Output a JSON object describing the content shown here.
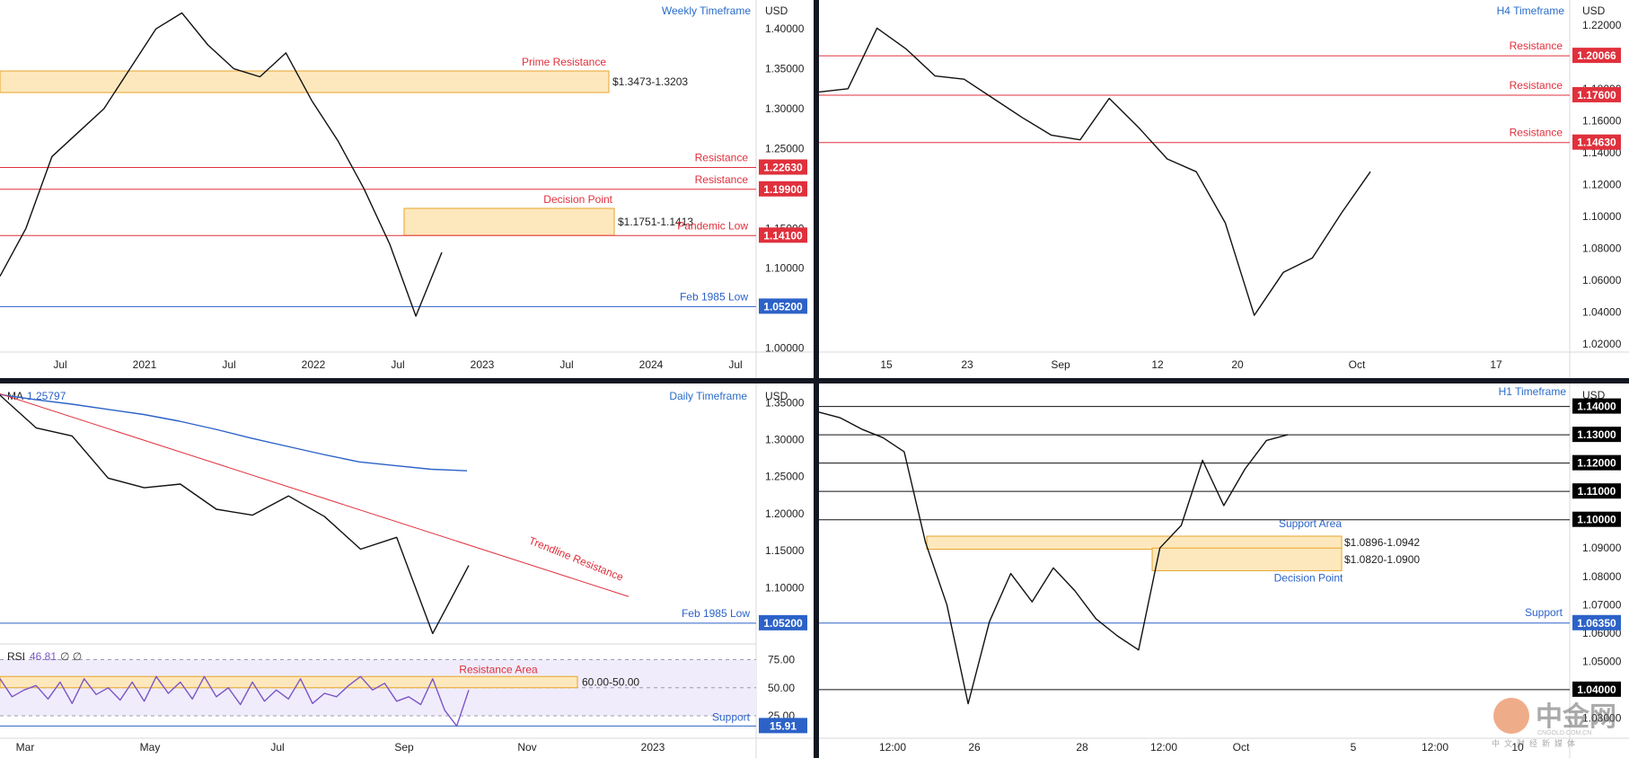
{
  "colors": {
    "resistance": "#e0303c",
    "support": "#2c62c8",
    "zone_fill": "#fde8bd",
    "zone_stroke": "#e9a42a",
    "ma": "#2c62c8",
    "rsi": "#7b55c5",
    "trend": "#e0303c",
    "black": "#111111"
  },
  "currency": "USD",
  "chart_data": [
    {
      "panel": "weekly",
      "type": "line",
      "title": "Weekly Timeframe",
      "ylim": [
        0.995,
        1.425
      ],
      "y_ticks": [
        "1.40000",
        "1.35000",
        "1.30000",
        "1.25000",
        "1.20000",
        "1.15000",
        "1.10000",
        "1.05000",
        "1.00000"
      ],
      "y_tick_values": [
        1.4,
        1.35,
        1.3,
        1.25,
        1.2,
        1.15,
        1.1,
        1.05,
        1.0
      ],
      "x_ticks": [
        "Jul",
        "2021",
        "Jul",
        "2022",
        "Jul",
        "2023",
        "Jul",
        "2024",
        "Jul"
      ],
      "x": [
        "2020-03",
        "2020-05",
        "2020-07",
        "2020-09",
        "2020-12",
        "2021-02",
        "2021-05",
        "2021-07",
        "2021-09",
        "2021-11",
        "2022-01",
        "2022-03",
        "2022-05",
        "2022-07",
        "2022-08",
        "2022-09",
        "2022-09-25",
        "2022-10"
      ],
      "series": [
        {
          "values": [
            1.09,
            1.15,
            1.24,
            1.27,
            1.3,
            1.35,
            1.4,
            1.42,
            1.38,
            1.35,
            1.34,
            1.37,
            1.31,
            1.26,
            1.2,
            1.13,
            1.04,
            1.12
          ]
        }
      ],
      "levels": [
        {
          "label": "Resistance",
          "value": 1.2263,
          "tag": "1.22630",
          "kind": "resistance"
        },
        {
          "label": "Resistance",
          "value": 1.199,
          "tag": "1.19900",
          "kind": "resistance"
        },
        {
          "label": "Pandemic Low",
          "value": 1.141,
          "tag": "1.14100",
          "kind": "resistance"
        },
        {
          "label": "Feb 1985 Low",
          "value": 1.052,
          "tag": "1.05200",
          "kind": "support"
        }
      ],
      "zones": [
        {
          "label": "Prime Resistance",
          "range_text": "$1.3473-1.3203",
          "high": 1.3473,
          "low": 1.3203
        },
        {
          "label": "Decision Point",
          "range_text": "$1.1751-1.1413",
          "high": 1.1751,
          "low": 1.1413
        }
      ]
    },
    {
      "panel": "h4",
      "type": "line",
      "title": "H4 Timeframe",
      "ylim": [
        1.015,
        1.23
      ],
      "y_ticks": [
        "1.22000",
        "1.20000",
        "1.18000",
        "1.16000",
        "1.14000",
        "1.12000",
        "1.10000",
        "1.08000",
        "1.06000",
        "1.04000",
        "1.02000"
      ],
      "y_tick_values": [
        1.22,
        1.2,
        1.18,
        1.16,
        1.14,
        1.12,
        1.1,
        1.08,
        1.06,
        1.04,
        1.02
      ],
      "x_ticks": [
        "15",
        "23",
        "Sep",
        "12",
        "20",
        "Oct",
        "17"
      ],
      "x": [
        "Aug 10",
        "Aug 12",
        "Aug 15",
        "Aug 20",
        "Aug 23",
        "Aug 26",
        "Aug 29",
        "Sep 2",
        "Sep 6",
        "Sep 9",
        "Sep 13",
        "Sep 16",
        "Sep 20",
        "Sep 23",
        "Sep 25",
        "Sep 26",
        "Sep 28",
        "Sep 30",
        "Oct 2",
        "Oct 4"
      ],
      "series": [
        {
          "values": [
            1.178,
            1.18,
            1.218,
            1.205,
            1.188,
            1.186,
            1.174,
            1.162,
            1.151,
            1.148,
            1.174,
            1.156,
            1.136,
            1.128,
            1.096,
            1.038,
            1.065,
            1.074,
            1.102,
            1.128
          ]
        }
      ],
      "levels": [
        {
          "label": "Resistance",
          "value": 1.20066,
          "tag": "1.20066",
          "kind": "resistance"
        },
        {
          "label": "Resistance",
          "value": 1.176,
          "tag": "1.17600",
          "kind": "resistance"
        },
        {
          "label": "Resistance",
          "value": 1.1463,
          "tag": "1.14630",
          "kind": "resistance"
        }
      ],
      "zones": []
    },
    {
      "panel": "daily",
      "type": "line",
      "title": "Daily Timeframe",
      "ylim": [
        1.03,
        1.365
      ],
      "y_ticks": [
        "1.35000",
        "1.30000",
        "1.25000",
        "1.20000",
        "1.15000",
        "1.10000"
      ],
      "y_tick_values": [
        1.35,
        1.3,
        1.25,
        1.2,
        1.15,
        1.1
      ],
      "x_ticks": [
        "Mar",
        "May",
        "Jul",
        "Sep",
        "Nov",
        "2023"
      ],
      "indicator": {
        "name": "MA",
        "value": "1.25797"
      },
      "x": [
        "2022-02-22",
        "2022-03-15",
        "2022-04-05",
        "2022-04-25",
        "2022-05-15",
        "2022-06-05",
        "2022-06-25",
        "2022-07-15",
        "2022-08-01",
        "2022-08-20",
        "2022-09-05",
        "2022-09-15",
        "2022-09-26",
        "2022-10-04"
      ],
      "series": [
        {
          "values": [
            1.36,
            1.316,
            1.305,
            1.248,
            1.235,
            1.24,
            1.206,
            1.198,
            1.224,
            1.196,
            1.152,
            1.168,
            1.038,
            1.13
          ]
        },
        {
          "name": "MA",
          "values": [
            1.361,
            1.354,
            1.348,
            1.341,
            1.334,
            1.325,
            1.314,
            1.302,
            1.291,
            1.28,
            1.27,
            1.265,
            1.26,
            1.258
          ]
        }
      ],
      "trendline": {
        "label": "Trendline Resistance",
        "start": {
          "x": "2022-02-22",
          "y": 1.362
        },
        "end": {
          "x": "2022-11-30",
          "y": 1.088
        }
      },
      "levels": [
        {
          "label": "Feb 1985 Low",
          "value": 1.052,
          "tag": "1.05200",
          "kind": "support"
        }
      ],
      "rsi": {
        "label": "RSI",
        "value": "46.81",
        "extra": "∅ ∅",
        "ylim": [
          5,
          85
        ],
        "ticks": [
          "75.00",
          "50.00",
          "25.00"
        ],
        "tick_values": [
          75,
          50,
          25
        ],
        "zone": {
          "label": "Resistance Area",
          "range_text": "60.00-50.00",
          "high": 60,
          "low": 50
        },
        "support": {
          "label": "Support",
          "value": 15.91,
          "tag": "15.91"
        },
        "values": [
          58,
          42,
          48,
          52,
          40,
          55,
          36,
          58,
          44,
          50,
          39,
          55,
          38,
          60,
          45,
          55,
          40,
          60,
          42,
          50,
          35,
          55,
          38,
          48,
          40,
          58,
          36,
          45,
          42,
          52,
          60,
          48,
          54,
          38,
          42,
          35,
          58,
          30,
          15.9,
          48
        ]
      }
    },
    {
      "panel": "h1",
      "type": "line",
      "title": "H1 Timeframe",
      "ylim": [
        1.026,
        1.144
      ],
      "y_ticks": [
        "1.09000",
        "1.08000",
        "1.07000",
        "1.06000",
        "1.05000",
        "1.03000"
      ],
      "y_tick_values": [
        1.09,
        1.08,
        1.07,
        1.06,
        1.05,
        1.03
      ],
      "x_ticks": [
        "12:00",
        "26",
        "28",
        "12:00",
        "Oct",
        "5",
        "12:00",
        "10"
      ],
      "x": [
        "Sep 22 00:00",
        "Sep 22 12:00",
        "Sep 23 00:00",
        "Sep 23 12:00",
        "Sep 26 00:00",
        "Sep 26 06:00",
        "Sep 26 12:00",
        "Sep 27 00:00",
        "Sep 27 12:00",
        "Sep 28 00:00",
        "Sep 28 06:00",
        "Sep 28 12:00",
        "Sep 28 18:00",
        "Sep 29 00:00",
        "Sep 29 12:00",
        "Sep 30 00:00",
        "Sep 30 12:00",
        "Oct 2 20:00",
        "Oct 3 00:00",
        "Oct 3 06:00",
        "Oct 3 12:00",
        "Oct 4 00:00",
        "Oct 4 06:00"
      ],
      "series": [
        {
          "values": [
            1.138,
            1.136,
            1.132,
            1.129,
            1.124,
            1.092,
            1.07,
            1.035,
            1.064,
            1.081,
            1.071,
            1.083,
            1.075,
            1.065,
            1.059,
            1.054,
            1.09,
            1.098,
            1.121,
            1.105,
            1.118,
            1.128,
            1.13
          ]
        }
      ],
      "levels": [
        {
          "value": 1.14,
          "tag": "1.14000",
          "kind": "black"
        },
        {
          "value": 1.13,
          "tag": "1.13000",
          "kind": "black"
        },
        {
          "value": 1.12,
          "tag": "1.12000",
          "kind": "black"
        },
        {
          "value": 1.11,
          "tag": "1.11000",
          "kind": "black"
        },
        {
          "value": 1.1,
          "tag": "1.10000",
          "kind": "black"
        },
        {
          "label": "Support",
          "value": 1.0635,
          "tag": "1.06350",
          "kind": "support"
        },
        {
          "value": 1.04,
          "tag": "1.04000",
          "kind": "black"
        }
      ],
      "zones": [
        {
          "label": "Support Area",
          "range_text": "$1.0896-1.0942",
          "high": 1.0942,
          "low": 1.0896
        },
        {
          "label": "Decision Point",
          "range_text": "$1.0820-1.0900",
          "high": 1.09,
          "low": 1.082
        }
      ]
    }
  ],
  "watermark": {
    "main": "中金网",
    "sub": "中文财经新媒体",
    "url": "CNGOLD.COM.CN"
  }
}
